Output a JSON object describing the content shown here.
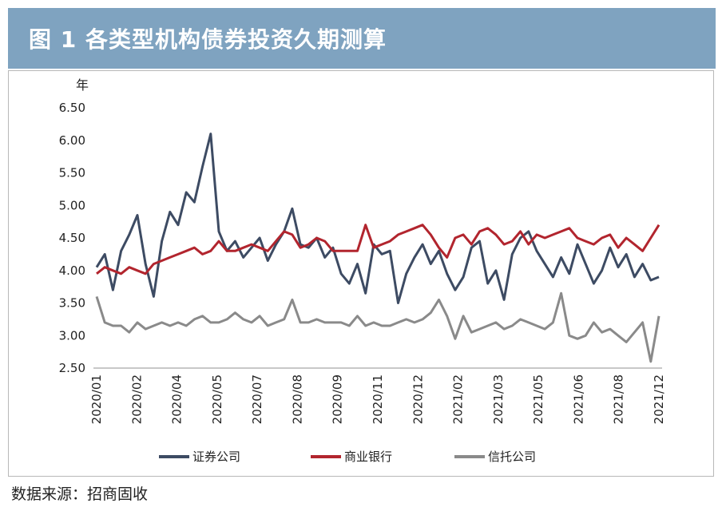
{
  "header": {
    "title": "图 1   各类型机构债券投资久期测算"
  },
  "source": "数据来源：招商固收",
  "chart_data": {
    "type": "line",
    "ylabel": "年",
    "ylim": [
      2.5,
      6.5
    ],
    "yticks": [
      "6.50",
      "6.00",
      "5.50",
      "5.00",
      "4.50",
      "4.00",
      "3.50",
      "3.00",
      "2.50"
    ],
    "x_ticks": [
      "2020/01",
      "2020/02",
      "2020/04",
      "2020/05",
      "2020/07",
      "2020/08",
      "2020/09",
      "2020/11",
      "2020/12",
      "2021/02",
      "2021/03",
      "2021/05",
      "2021/06",
      "2021/08",
      "2021/12"
    ],
    "x": [
      "2020/01",
      "2020/01",
      "2020/01",
      "2020/02",
      "2020/02",
      "2020/02",
      "2020/03",
      "2020/03",
      "2020/03",
      "2020/04",
      "2020/04",
      "2020/04",
      "2020/05",
      "2020/05",
      "2020/05",
      "2020/06",
      "2020/06",
      "2020/06",
      "2020/07",
      "2020/07",
      "2020/07",
      "2020/08",
      "2020/08",
      "2020/08",
      "2020/09",
      "2020/09",
      "2020/09",
      "2020/10",
      "2020/10",
      "2020/10",
      "2020/11",
      "2020/11",
      "2020/11",
      "2020/12",
      "2020/12",
      "2020/12",
      "2021/01",
      "2021/01",
      "2021/01",
      "2021/02",
      "2021/02",
      "2021/02",
      "2021/03",
      "2021/03",
      "2021/03",
      "2021/04",
      "2021/04",
      "2021/04",
      "2021/05",
      "2021/05",
      "2021/05",
      "2021/06",
      "2021/06",
      "2021/06",
      "2021/07",
      "2021/07",
      "2021/07",
      "2021/08",
      "2021/08",
      "2021/08",
      "2021/09",
      "2021/09",
      "2021/09",
      "2021/10",
      "2021/10",
      "2021/10",
      "2021/11",
      "2021/11",
      "2021/11",
      "2021/12"
    ],
    "series": [
      {
        "name": "证券公司",
        "color": "#3d4b63",
        "values": [
          4.05,
          4.25,
          3.7,
          4.3,
          4.55,
          4.85,
          4.1,
          3.6,
          4.45,
          4.9,
          4.7,
          5.2,
          5.05,
          5.6,
          6.1,
          4.6,
          4.3,
          4.45,
          4.2,
          4.35,
          4.5,
          4.15,
          4.4,
          4.6,
          4.95,
          4.4,
          4.35,
          4.5,
          4.2,
          4.35,
          3.95,
          3.8,
          4.1,
          3.65,
          4.4,
          4.25,
          4.3,
          3.5,
          3.95,
          4.2,
          4.4,
          4.1,
          4.3,
          3.95,
          3.7,
          3.9,
          4.35,
          4.45,
          3.8,
          4.0,
          3.55,
          4.25,
          4.5,
          4.6,
          4.3,
          4.1,
          3.9,
          4.2,
          3.95,
          4.4,
          4.1,
          3.8,
          4.0,
          4.35,
          4.05,
          4.25,
          3.9,
          4.1,
          3.85,
          3.9
        ]
      },
      {
        "name": "商业银行",
        "color": "#b2252e",
        "values": [
          3.95,
          4.05,
          4.0,
          3.95,
          4.05,
          4.0,
          3.95,
          4.1,
          4.15,
          4.2,
          4.25,
          4.3,
          4.35,
          4.25,
          4.3,
          4.45,
          4.3,
          4.3,
          4.35,
          4.4,
          4.35,
          4.3,
          4.45,
          4.6,
          4.55,
          4.35,
          4.4,
          4.5,
          4.45,
          4.3,
          4.3,
          4.3,
          4.3,
          4.7,
          4.35,
          4.4,
          4.45,
          4.55,
          4.6,
          4.65,
          4.7,
          4.55,
          4.35,
          4.2,
          4.5,
          4.55,
          4.4,
          4.6,
          4.65,
          4.55,
          4.4,
          4.45,
          4.6,
          4.4,
          4.55,
          4.5,
          4.55,
          4.6,
          4.65,
          4.5,
          4.45,
          4.4,
          4.5,
          4.55,
          4.35,
          4.5,
          4.4,
          4.3,
          4.5,
          4.7
        ]
      },
      {
        "name": "信托公司",
        "color": "#8a8a8a",
        "values": [
          3.6,
          3.2,
          3.15,
          3.15,
          3.05,
          3.2,
          3.1,
          3.15,
          3.2,
          3.15,
          3.2,
          3.15,
          3.25,
          3.3,
          3.2,
          3.2,
          3.25,
          3.35,
          3.25,
          3.2,
          3.3,
          3.15,
          3.2,
          3.25,
          3.55,
          3.2,
          3.2,
          3.25,
          3.2,
          3.2,
          3.2,
          3.15,
          3.3,
          3.15,
          3.2,
          3.15,
          3.15,
          3.2,
          3.25,
          3.2,
          3.25,
          3.35,
          3.55,
          3.3,
          2.95,
          3.3,
          3.05,
          3.1,
          3.15,
          3.2,
          3.1,
          3.15,
          3.25,
          3.2,
          3.15,
          3.1,
          3.2,
          3.65,
          3.0,
          2.95,
          3.0,
          3.2,
          3.05,
          3.1,
          3.0,
          2.9,
          3.05,
          3.2,
          2.6,
          3.3
        ]
      }
    ],
    "legend_position": "bottom",
    "grid": false
  }
}
